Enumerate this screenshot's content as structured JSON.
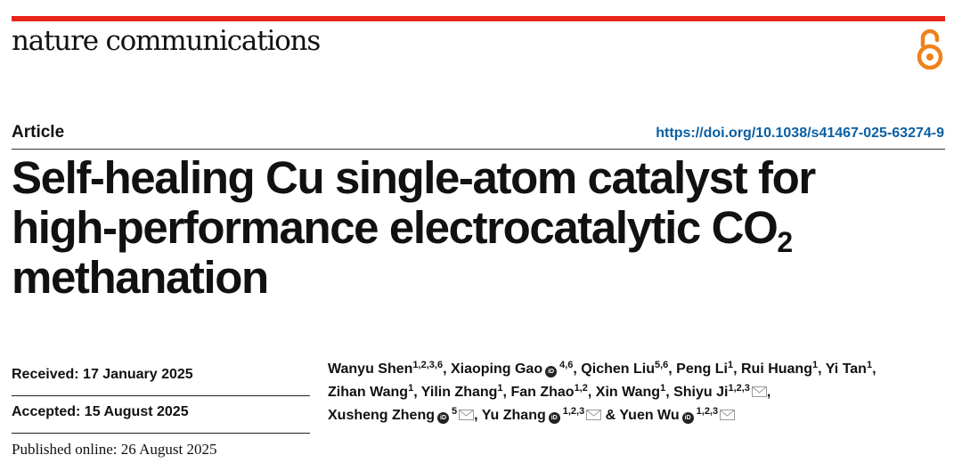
{
  "journal": {
    "name": "nature communications"
  },
  "header": {
    "article_type": "Article",
    "doi": "https://doi.org/10.1038/s41467-025-63274-9"
  },
  "title": {
    "line1": "Self-healing Cu single-atom catalyst for",
    "line2_main": "high-performance electrocatalytic CO",
    "line2_sub": "2",
    "line3": "methanation"
  },
  "dates": {
    "received": "Received: 17 January 2025",
    "accepted": "Accepted: 15 August 2025",
    "published": "Published online: 26 August 2025"
  },
  "icons": {
    "open_access": "open-access-icon",
    "orcid": "orcid-icon",
    "email": "email-icon"
  },
  "colors": {
    "accent_bar": "#e8241b",
    "open_access": "#f0811a",
    "doi_link": "#0b5fa3"
  },
  "authors": [
    {
      "name": "Wanyu Shen",
      "sup": "1,2,3,6"
    },
    {
      "name": "Xiaoping Gao",
      "sup": "4,6"
    },
    {
      "name": "Qichen Liu",
      "sup": "5,6"
    },
    {
      "name": "Peng Li",
      "sup": "1"
    },
    {
      "name": "Rui Huang",
      "sup": "1"
    },
    {
      "name": "Yi Tan",
      "sup": "1"
    },
    {
      "name": "Zihan Wang",
      "sup": "1"
    },
    {
      "name": "Yilin Zhang",
      "sup": "1"
    },
    {
      "name": "Fan Zhao",
      "sup": "1,2"
    },
    {
      "name": "Xin Wang",
      "sup": "1"
    },
    {
      "name": "Shiyu Ji",
      "sup": "1,2,3"
    },
    {
      "name": "Xusheng Zheng",
      "sup": "5"
    },
    {
      "name": "Yu Zhang",
      "sup": "1,2,3"
    },
    {
      "name": "Yuen Wu",
      "sup": "1,2,3"
    }
  ],
  "separators": {
    "comma": ",",
    "ampersand": "&"
  }
}
